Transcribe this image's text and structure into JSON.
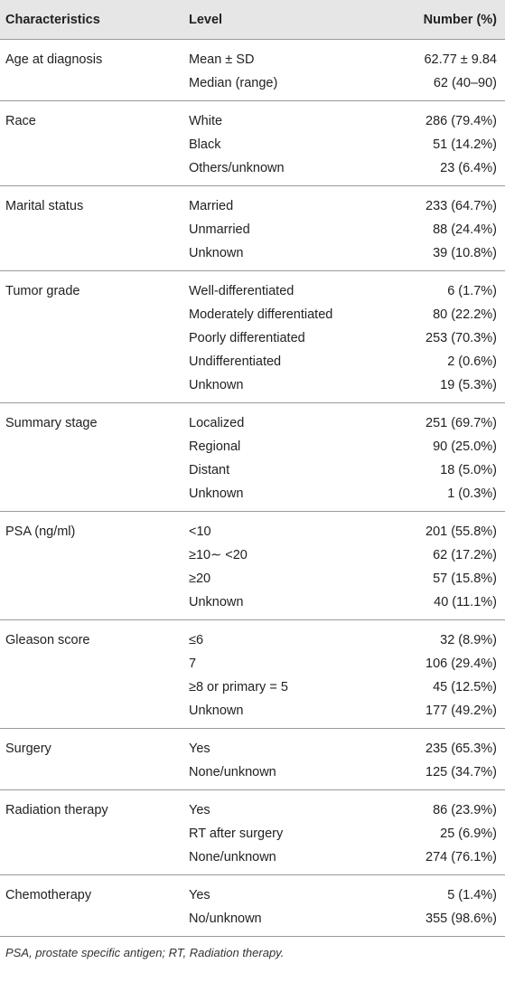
{
  "header": {
    "characteristics": "Characteristics",
    "level": "Level",
    "number": "Number (%)"
  },
  "groups": [
    {
      "name": "Age at diagnosis",
      "rows": [
        {
          "level": "Mean ± SD",
          "number": "62.77 ± 9.84"
        },
        {
          "level": "Median (range)",
          "number": "62 (40–90)"
        }
      ]
    },
    {
      "name": "Race",
      "rows": [
        {
          "level": "White",
          "number": "286 (79.4%)"
        },
        {
          "level": "Black",
          "number": "51 (14.2%)"
        },
        {
          "level": "Others/unknown",
          "number": "23 (6.4%)"
        }
      ]
    },
    {
      "name": "Marital status",
      "rows": [
        {
          "level": "Married",
          "number": "233 (64.7%)"
        },
        {
          "level": "Unmarried",
          "number": "88 (24.4%)"
        },
        {
          "level": "Unknown",
          "number": "39 (10.8%)"
        }
      ]
    },
    {
      "name": "Tumor grade",
      "rows": [
        {
          "level": "Well-differentiated",
          "number": "6 (1.7%)"
        },
        {
          "level": "Moderately differentiated",
          "number": "80 (22.2%)"
        },
        {
          "level": "Poorly differentiated",
          "number": "253 (70.3%)"
        },
        {
          "level": "Undifferentiated",
          "number": "2 (0.6%)"
        },
        {
          "level": "Unknown",
          "number": "19 (5.3%)"
        }
      ]
    },
    {
      "name": "Summary stage",
      "rows": [
        {
          "level": "Localized",
          "number": "251 (69.7%)"
        },
        {
          "level": "Regional",
          "number": "90 (25.0%)"
        },
        {
          "level": "Distant",
          "number": "18 (5.0%)"
        },
        {
          "level": "Unknown",
          "number": "1 (0.3%)"
        }
      ]
    },
    {
      "name": "PSA (ng/ml)",
      "rows": [
        {
          "level": "<10",
          "number": "201 (55.8%)"
        },
        {
          "level": "≥10∼ <20",
          "number": "62 (17.2%)"
        },
        {
          "level": "≥20",
          "number": "57 (15.8%)"
        },
        {
          "level": "Unknown",
          "number": "40 (11.1%)"
        }
      ]
    },
    {
      "name": "Gleason score",
      "rows": [
        {
          "level": "≤6",
          "number": "32 (8.9%)"
        },
        {
          "level": "7",
          "number": "106 (29.4%)"
        },
        {
          "level": "≥8 or primary = 5",
          "number": "45 (12.5%)"
        },
        {
          "level": "Unknown",
          "number": "177 (49.2%)"
        }
      ]
    },
    {
      "name": "Surgery",
      "rows": [
        {
          "level": "Yes",
          "number": "235 (65.3%)"
        },
        {
          "level": "None/unknown",
          "number": "125 (34.7%)"
        }
      ]
    },
    {
      "name": "Radiation therapy",
      "rows": [
        {
          "level": "Yes",
          "number": "86 (23.9%)"
        },
        {
          "level": "RT after surgery",
          "number": "25 (6.9%)"
        },
        {
          "level": "None/unknown",
          "number": "274 (76.1%)"
        }
      ]
    },
    {
      "name": "Chemotherapy",
      "rows": [
        {
          "level": "Yes",
          "number": "5 (1.4%)"
        },
        {
          "level": "No/unknown",
          "number": "355 (98.6%)"
        }
      ]
    }
  ],
  "footnote": "PSA, prostate specific antigen; RT, Radiation therapy."
}
